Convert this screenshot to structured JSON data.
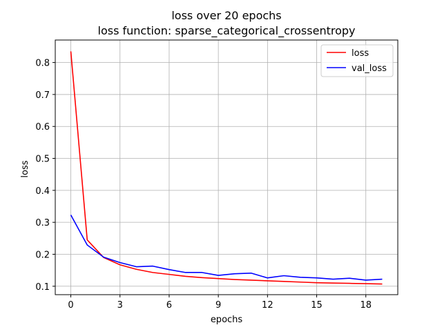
{
  "chart_data": {
    "type": "line",
    "title": "loss over 20 epochs",
    "subtitle": "loss function: sparse_categorical_crossentropy",
    "xlabel": "epochs",
    "ylabel": "loss",
    "xlim": [
      -0.95,
      19.95
    ],
    "ylim": [
      0.0736,
      0.8704
    ],
    "xticks": [
      0,
      3,
      6,
      9,
      12,
      15,
      18
    ],
    "yticks": [
      0.1,
      0.2,
      0.3,
      0.4,
      0.5,
      0.6,
      0.7,
      0.8
    ],
    "grid": true,
    "legend_position": "top-right",
    "x": [
      0,
      1,
      2,
      3,
      4,
      5,
      6,
      7,
      8,
      9,
      10,
      11,
      12,
      13,
      14,
      15,
      16,
      17,
      18,
      19
    ],
    "series": [
      {
        "name": "loss",
        "color": "#ff0000",
        "values": [
          0.835,
          0.245,
          0.19,
          0.167,
          0.153,
          0.143,
          0.137,
          0.131,
          0.127,
          0.124,
          0.121,
          0.119,
          0.117,
          0.115,
          0.113,
          0.111,
          0.11,
          0.109,
          0.108,
          0.107
        ]
      },
      {
        "name": "val_loss",
        "color": "#0000ff",
        "values": [
          0.323,
          0.229,
          0.191,
          0.174,
          0.161,
          0.163,
          0.152,
          0.143,
          0.143,
          0.134,
          0.139,
          0.141,
          0.126,
          0.133,
          0.128,
          0.126,
          0.122,
          0.125,
          0.119,
          0.122
        ]
      }
    ]
  }
}
